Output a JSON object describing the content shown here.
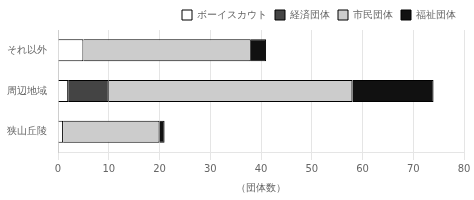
{
  "chart_data": {
    "type": "bar",
    "orientation": "horizontal",
    "stacked": true,
    "categories": [
      "狭山丘陵",
      "周辺地域",
      "それ以外"
    ],
    "series": [
      {
        "name": "ボーイスカウト",
        "color": "#ffffff",
        "values": [
          1,
          2,
          5
        ]
      },
      {
        "name": "経済団体",
        "color": "#444444",
        "values": [
          0,
          8,
          0
        ]
      },
      {
        "name": "市民団体",
        "color": "#cccccc",
        "values": [
          19,
          48,
          33
        ]
      },
      {
        "name": "福祉団体",
        "color": "#111111",
        "values": [
          1,
          16,
          3
        ]
      }
    ],
    "xlabel": "（団体数）",
    "xlim": [
      0,
      80
    ],
    "xticks": [
      0,
      10,
      20,
      30,
      40,
      50,
      60,
      70,
      80
    ],
    "grid": true,
    "legend": "upper right"
  }
}
